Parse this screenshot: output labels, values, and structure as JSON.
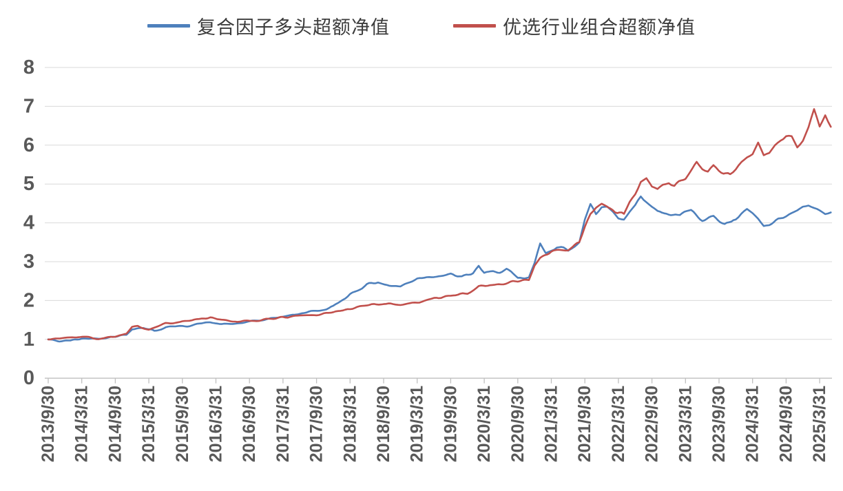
{
  "legend": {
    "items": [
      {
        "label": "复合因子多头超额净值"
      },
      {
        "label": "优选行业组合超额净值"
      }
    ]
  },
  "style": {
    "blue": "#4E80BC",
    "red": "#C1504C",
    "gridline_color": "#D9D9D9",
    "axis_color": "#BFBFBF",
    "tick_label_color": "#595959",
    "background": "#FFFFFF"
  },
  "chart_data": {
    "type": "line",
    "title": "",
    "xlabel": "",
    "ylabel": "",
    "ylim": [
      0,
      8
    ],
    "y_ticks": [
      0,
      1,
      2,
      3,
      4,
      5,
      6,
      7,
      8
    ],
    "grid": "horizontal",
    "legend_position": "top-center",
    "x_ticklabels": [
      "2013/9/30",
      "2014/3/31",
      "2014/9/30",
      "2015/3/31",
      "2015/9/30",
      "2016/3/31",
      "2016/9/30",
      "2017/3/31",
      "2017/9/30",
      "2018/3/31",
      "2018/9/30",
      "2019/3/31",
      "2019/9/30",
      "2020/3/31",
      "2020/9/30",
      "2021/3/31",
      "2021/9/30",
      "2022/3/31",
      "2022/9/30",
      "2023/3/31",
      "2023/9/30",
      "2024/3/31",
      "2024/9/30",
      "2025/3/31"
    ],
    "series": [
      {
        "name": "复合因子多头超额净值",
        "color": "#4E80BC",
        "points": [
          [
            "2013/9",
            1.0
          ],
          [
            "2013/11",
            0.95
          ],
          [
            "2014/1",
            0.97
          ],
          [
            "2014/3",
            1.02
          ],
          [
            "2014/6",
            1.03
          ],
          [
            "2014/9",
            1.08
          ],
          [
            "2014/11",
            1.12
          ],
          [
            "2014/12",
            1.28
          ],
          [
            "2015/2",
            1.3
          ],
          [
            "2015/4",
            1.22
          ],
          [
            "2015/6",
            1.31
          ],
          [
            "2015/9",
            1.34
          ],
          [
            "2015/12",
            1.4
          ],
          [
            "2016/2",
            1.44
          ],
          [
            "2016/4",
            1.38
          ],
          [
            "2016/6",
            1.4
          ],
          [
            "2016/9",
            1.44
          ],
          [
            "2016/12",
            1.52
          ],
          [
            "2017/3",
            1.58
          ],
          [
            "2017/6",
            1.67
          ],
          [
            "2017/8",
            1.72
          ],
          [
            "2017/10",
            1.75
          ],
          [
            "2017/12",
            1.84
          ],
          [
            "2018/3",
            2.17
          ],
          [
            "2018/6",
            2.41
          ],
          [
            "2018/8",
            2.48
          ],
          [
            "2018/10",
            2.38
          ],
          [
            "2018/12",
            2.36
          ],
          [
            "2019/3",
            2.58
          ],
          [
            "2019/6",
            2.64
          ],
          [
            "2019/9",
            2.66
          ],
          [
            "2019/11",
            2.6
          ],
          [
            "2020/1",
            2.7
          ],
          [
            "2020/2",
            2.9
          ],
          [
            "2020/3",
            2.7
          ],
          [
            "2020/5",
            2.73
          ],
          [
            "2020/7",
            2.8
          ],
          [
            "2020/9",
            2.55
          ],
          [
            "2020/11",
            2.58
          ],
          [
            "2020/12",
            2.95
          ],
          [
            "2021/1",
            3.45
          ],
          [
            "2021/2",
            3.22
          ],
          [
            "2021/3",
            3.32
          ],
          [
            "2021/4",
            3.4
          ],
          [
            "2021/6",
            3.26
          ],
          [
            "2021/8",
            3.55
          ],
          [
            "2021/9",
            4.1
          ],
          [
            "2021/10",
            4.45
          ],
          [
            "2021/11",
            4.2
          ],
          [
            "2021/12",
            4.4
          ],
          [
            "2022/1",
            4.42
          ],
          [
            "2022/2",
            4.3
          ],
          [
            "2022/3",
            4.14
          ],
          [
            "2022/4",
            4.12
          ],
          [
            "2022/5",
            4.3
          ],
          [
            "2022/6",
            4.45
          ],
          [
            "2022/7",
            4.7
          ],
          [
            "2022/8",
            4.6
          ],
          [
            "2022/9",
            4.42
          ],
          [
            "2022/10",
            4.3
          ],
          [
            "2022/12",
            4.24
          ],
          [
            "2023/2",
            4.2
          ],
          [
            "2023/4",
            4.3
          ],
          [
            "2023/6",
            4.12
          ],
          [
            "2023/8",
            4.15
          ],
          [
            "2023/10",
            3.98
          ],
          [
            "2023/12",
            4.05
          ],
          [
            "2024/1",
            4.22
          ],
          [
            "2024/2",
            4.3
          ],
          [
            "2024/3",
            4.22
          ],
          [
            "2024/4",
            4.1
          ],
          [
            "2024/5",
            3.9
          ],
          [
            "2024/6",
            3.92
          ],
          [
            "2024/8",
            4.08
          ],
          [
            "2024/9",
            4.15
          ],
          [
            "2024/10",
            4.22
          ],
          [
            "2024/11",
            4.3
          ],
          [
            "2024/12",
            4.4
          ],
          [
            "2025/1",
            4.45
          ],
          [
            "2025/2",
            4.35
          ],
          [
            "2025/3",
            4.28
          ],
          [
            "2025/4",
            4.24
          ],
          [
            "2025/5",
            4.26
          ]
        ]
      },
      {
        "name": "优选行业组合超额净值",
        "color": "#C1504C",
        "points": [
          [
            "2013/9",
            1.0
          ],
          [
            "2013/12",
            1.04
          ],
          [
            "2014/3",
            1.07
          ],
          [
            "2014/6",
            1.02
          ],
          [
            "2014/9",
            1.08
          ],
          [
            "2014/11",
            1.15
          ],
          [
            "2014/12",
            1.33
          ],
          [
            "2015/1",
            1.36
          ],
          [
            "2015/3",
            1.26
          ],
          [
            "2015/6",
            1.4
          ],
          [
            "2015/9",
            1.49
          ],
          [
            "2015/12",
            1.52
          ],
          [
            "2016/2",
            1.58
          ],
          [
            "2016/4",
            1.5
          ],
          [
            "2016/6",
            1.45
          ],
          [
            "2016/9",
            1.46
          ],
          [
            "2016/12",
            1.52
          ],
          [
            "2017/3",
            1.57
          ],
          [
            "2017/6",
            1.61
          ],
          [
            "2017/9",
            1.64
          ],
          [
            "2017/12",
            1.7
          ],
          [
            "2018/3",
            1.79
          ],
          [
            "2018/6",
            1.87
          ],
          [
            "2018/9",
            1.93
          ],
          [
            "2018/12",
            1.9
          ],
          [
            "2019/3",
            1.96
          ],
          [
            "2019/6",
            2.05
          ],
          [
            "2019/9",
            2.11
          ],
          [
            "2019/12",
            2.2
          ],
          [
            "2020/2",
            2.36
          ],
          [
            "2020/4",
            2.4
          ],
          [
            "2020/6",
            2.44
          ],
          [
            "2020/9",
            2.5
          ],
          [
            "2020/11",
            2.53
          ],
          [
            "2020/12",
            2.9
          ],
          [
            "2021/1",
            3.1
          ],
          [
            "2021/3",
            3.23
          ],
          [
            "2021/5",
            3.3
          ],
          [
            "2021/6",
            3.28
          ],
          [
            "2021/8",
            3.5
          ],
          [
            "2021/9",
            3.9
          ],
          [
            "2021/10",
            4.2
          ],
          [
            "2021/11",
            4.38
          ],
          [
            "2021/12",
            4.48
          ],
          [
            "2022/2",
            4.33
          ],
          [
            "2022/4",
            4.18
          ],
          [
            "2022/5",
            4.5
          ],
          [
            "2022/6",
            4.75
          ],
          [
            "2022/7",
            5.1
          ],
          [
            "2022/8",
            5.15
          ],
          [
            "2022/9",
            4.9
          ],
          [
            "2022/10",
            4.84
          ],
          [
            "2022/11",
            5.0
          ],
          [
            "2022/12",
            5.09
          ],
          [
            "2023/1",
            5.01
          ],
          [
            "2023/3",
            5.17
          ],
          [
            "2023/5",
            5.55
          ],
          [
            "2023/6",
            5.42
          ],
          [
            "2023/7",
            5.3
          ],
          [
            "2023/8",
            5.45
          ],
          [
            "2023/9",
            5.32
          ],
          [
            "2023/11",
            5.25
          ],
          [
            "2023/12",
            5.38
          ],
          [
            "2024/1",
            5.55
          ],
          [
            "2024/2",
            5.7
          ],
          [
            "2024/3",
            5.8
          ],
          [
            "2024/4",
            6.05
          ],
          [
            "2024/5",
            5.7
          ],
          [
            "2024/6",
            5.8
          ],
          [
            "2024/7",
            5.98
          ],
          [
            "2024/8",
            6.18
          ],
          [
            "2024/9",
            6.28
          ],
          [
            "2024/10",
            6.25
          ],
          [
            "2024/11",
            6.0
          ],
          [
            "2024/12",
            6.15
          ],
          [
            "2025/1",
            6.45
          ],
          [
            "2025/2",
            6.84
          ],
          [
            "2025/3",
            6.42
          ],
          [
            "2025/4",
            6.78
          ],
          [
            "2025/5",
            6.48
          ]
        ]
      }
    ]
  }
}
